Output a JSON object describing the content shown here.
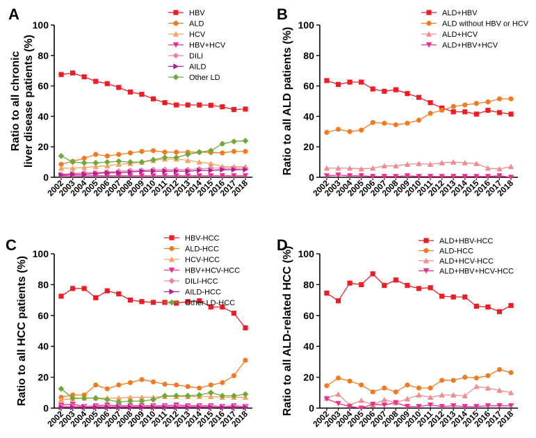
{
  "chart_data": [
    {
      "panel": "A",
      "type": "line",
      "ylabel": "Ratio to all chronic liver disease patients (%)",
      "ylim": [
        0,
        100
      ],
      "yticks": [
        "0",
        "20",
        "40",
        "60",
        "80",
        "100"
      ],
      "x": [
        "2002",
        "2003",
        "2004",
        "2005",
        "2006",
        "2007",
        "2008",
        "2009",
        "2010",
        "2011",
        "2012",
        "2013",
        "2014",
        "2015",
        "2016",
        "2017",
        "2018"
      ],
      "legend_position": "top-right",
      "series": [
        {
          "name": "HBV",
          "color": "#ee1c25",
          "marker": "square",
          "values": [
            67.5,
            68.5,
            66,
            63,
            61.5,
            59,
            56,
            54.5,
            51.5,
            49,
            47.5,
            47.5,
            47.5,
            47.3,
            46.3,
            44.5,
            44.8
          ]
        },
        {
          "name": "ALD",
          "color": "#f47a20",
          "marker": "circle",
          "values": [
            8.5,
            10.5,
            12.5,
            15,
            14,
            15,
            16,
            17,
            17.5,
            16.5,
            16.5,
            16.5,
            16.5,
            16.3,
            16,
            17,
            17
          ]
        },
        {
          "name": "HCV",
          "color": "#f5a15f",
          "marker": "triangle-up",
          "values": [
            6,
            6,
            6.5,
            7,
            7.5,
            8.5,
            9,
            10,
            11,
            12,
            12,
            11,
            10,
            9,
            7,
            7,
            7
          ]
        },
        {
          "name": "HBV+HCV",
          "color": "#ec2e90",
          "marker": "triangle-down",
          "values": [
            1,
            1,
            1,
            1,
            1,
            1,
            1,
            1,
            1,
            1,
            1,
            1,
            1,
            1,
            1,
            1,
            1
          ]
        },
        {
          "name": "DILI",
          "color": "#f07fb0",
          "marker": "diamond",
          "values": [
            2,
            2.5,
            3,
            3,
            3.5,
            4,
            4.5,
            4.5,
            5,
            5,
            5,
            5,
            5.5,
            6,
            6,
            6,
            6
          ]
        },
        {
          "name": "AILD",
          "color": "#b01f8e",
          "marker": "triangle-right",
          "values": [
            1.5,
            2,
            2,
            2.5,
            3,
            3,
            3.5,
            4,
            4,
            4,
            4,
            4,
            4.5,
            4.5,
            5,
            5,
            5
          ]
        },
        {
          "name": "Other LD",
          "color": "#6ea83a",
          "marker": "diamond",
          "values": [
            14,
            10,
            9.5,
            9.5,
            10,
            10.5,
            10,
            10,
            11.5,
            13,
            13,
            15,
            16.5,
            17.5,
            22,
            23.5,
            24
          ]
        }
      ]
    },
    {
      "panel": "B",
      "type": "line",
      "ylabel": "Ratio to all ALD patients (%)",
      "ylim": [
        0,
        100
      ],
      "yticks": [
        "0",
        "20",
        "40",
        "60",
        "80",
        "100"
      ],
      "x": [
        "2002",
        "2003",
        "2004",
        "2005",
        "2006",
        "2007",
        "2008",
        "2009",
        "2010",
        "2011",
        "2012",
        "2013",
        "2014",
        "2015",
        "2016",
        "2017",
        "2018"
      ],
      "legend_position": "top-right",
      "series": [
        {
          "name": "ALD+HBV",
          "color": "#ee1c25",
          "marker": "square",
          "values": [
            63.5,
            61,
            62.5,
            62.5,
            58,
            56.5,
            57.5,
            55,
            52.5,
            49,
            45.5,
            43,
            43,
            41.5,
            44,
            42.5,
            41.5
          ]
        },
        {
          "name": "ALD without HBV or HCV",
          "color": "#f47a20",
          "marker": "circle",
          "values": [
            29.5,
            31.5,
            30,
            31,
            36,
            35.5,
            34.5,
            35.5,
            37.5,
            42,
            44,
            46.5,
            47.5,
            48.5,
            49.5,
            51.5,
            51.5
          ]
        },
        {
          "name": "ALD+HCV",
          "color": "#f28b8b",
          "marker": "triangle-up",
          "values": [
            6,
            6,
            6,
            5.5,
            6,
            7.5,
            7.5,
            8.5,
            9,
            8.5,
            9.5,
            10,
            9.5,
            9,
            6,
            5.5,
            7
          ]
        },
        {
          "name": "ALD+HBV+HCV",
          "color": "#ec2e90",
          "marker": "triangle-down",
          "values": [
            1,
            1.5,
            1,
            1,
            0.5,
            0.5,
            0.5,
            1,
            0.5,
            0.5,
            0.5,
            0.5,
            0.5,
            0.5,
            0.5,
            1,
            0
          ]
        }
      ]
    },
    {
      "panel": "C",
      "type": "line",
      "ylabel": "Ratio to all HCC patients (%)",
      "ylim": [
        0,
        100
      ],
      "yticks": [
        "0",
        "20",
        "40",
        "60",
        "80",
        "100"
      ],
      "x": [
        "2002",
        "2003",
        "2004",
        "2005",
        "2006",
        "2007",
        "2008",
        "2009",
        "2010",
        "2011",
        "2012",
        "2013",
        "2014",
        "2015",
        "2016",
        "2017",
        "2018"
      ],
      "legend_position": "top-right",
      "series": [
        {
          "name": "HBV-HCC",
          "color": "#ee1c25",
          "marker": "square",
          "values": [
            72.5,
            77.5,
            77.5,
            71.5,
            76,
            74,
            70,
            69,
            68.5,
            68.5,
            68,
            69,
            69.5,
            65.5,
            65.5,
            61.5,
            52
          ]
        },
        {
          "name": "ALD-HCC",
          "color": "#f47a20",
          "marker": "circle",
          "values": [
            7,
            8.5,
            8.5,
            15,
            12.5,
            15,
            16.5,
            18.5,
            17,
            15.5,
            15,
            14,
            13,
            15,
            16.5,
            21,
            31
          ]
        },
        {
          "name": "HCV-HCC",
          "color": "#f5a15f",
          "marker": "triangle-up",
          "values": [
            5.5,
            6,
            6.5,
            6.5,
            6.5,
            6.5,
            7,
            7,
            7,
            7.5,
            7.5,
            7.5,
            7.5,
            7.5,
            7,
            7,
            7
          ]
        },
        {
          "name": "HBV+HCV-HCC",
          "color": "#ec2e90",
          "marker": "triangle-down",
          "values": [
            2,
            2.5,
            1,
            1.5,
            2,
            1.5,
            1.5,
            1.5,
            1.5,
            1.5,
            2,
            1.5,
            1.5,
            1.5,
            1,
            1.5,
            1
          ]
        },
        {
          "name": "DILI-HCC",
          "color": "#f07fb0",
          "marker": "diamond",
          "values": [
            1,
            1,
            1,
            1,
            1,
            1,
            1,
            1,
            1,
            1,
            1,
            1,
            1,
            1,
            1,
            1,
            1
          ]
        },
        {
          "name": "AILD-HCC",
          "color": "#b01f8e",
          "marker": "triangle-right",
          "values": [
            0.5,
            0.5,
            0.5,
            0.5,
            0.5,
            0.5,
            0.5,
            0.5,
            0.5,
            0.5,
            0.5,
            0.5,
            0.5,
            0.5,
            0.5,
            0.5,
            0.5
          ]
        },
        {
          "name": "Other LD-HCC",
          "color": "#6ea83a",
          "marker": "diamond",
          "values": [
            12.5,
            6.5,
            6.5,
            6.5,
            5.5,
            4,
            4.5,
            4.5,
            5.5,
            8,
            8,
            8,
            8.5,
            10,
            8,
            8,
            9
          ]
        }
      ]
    },
    {
      "panel": "D",
      "type": "line",
      "ylabel": "Ratio to all ALD-related HCC (%)",
      "ylim": [
        0,
        100
      ],
      "yticks": [
        "0",
        "20",
        "40",
        "60",
        "80",
        "100"
      ],
      "x": [
        "2002",
        "2003",
        "2004",
        "2005",
        "2006",
        "2007",
        "2008",
        "2009",
        "2010",
        "2011",
        "2012",
        "2013",
        "2014",
        "2015",
        "2016",
        "2017",
        "2018"
      ],
      "legend_position": "top-right",
      "series": [
        {
          "name": "ALD+HBV-HCC",
          "color": "#ee1c25",
          "marker": "square",
          "values": [
            74.5,
            69.5,
            81,
            80,
            87,
            79.5,
            83,
            79.5,
            77.5,
            78,
            72.5,
            72,
            72,
            66,
            65.5,
            62.5,
            66.5
          ]
        },
        {
          "name": "ALD-HCC",
          "color": "#f47a20",
          "marker": "circle",
          "values": [
            14.5,
            19.5,
            17.5,
            15,
            10.5,
            13,
            10.5,
            15,
            13,
            13,
            18,
            18,
            20,
            19.5,
            21,
            25,
            23
          ]
        },
        {
          "name": "ALD+HCV-HCC",
          "color": "#f28b8b",
          "marker": "triangle-up",
          "values": [
            6.5,
            9,
            2,
            5,
            2,
            5.5,
            3.5,
            6,
            8.5,
            7,
            8.5,
            8.5,
            8,
            14,
            13,
            11.5,
            10
          ]
        },
        {
          "name": "ALD+HBV+HCV-HCC",
          "color": "#ec2e90",
          "marker": "triangle-down",
          "values": [
            6,
            3,
            1,
            0,
            2.5,
            2,
            3.5,
            1,
            1,
            2,
            1,
            1.5,
            1,
            1,
            1.5,
            1.5,
            1.5
          ]
        }
      ]
    }
  ]
}
